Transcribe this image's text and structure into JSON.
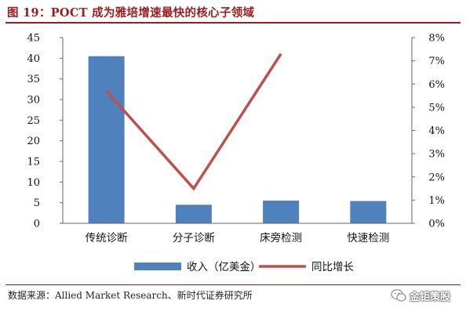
{
  "header": {
    "title": "图 19：POCT 成为雅培增速最快的核心子领域"
  },
  "footer": {
    "source": "数据来源：Allied Market Research、新时代证券研究所",
    "watermark": "金钜策股"
  },
  "colors": {
    "bar": "#4f81bd",
    "line": "#c0504d",
    "title": "#9b1c1c"
  },
  "chart_data": {
    "type": "bar",
    "categories": [
      "传统诊断",
      "分子诊断",
      "床旁检测",
      "快速检测"
    ],
    "series": [
      {
        "name": "收入（亿美金）",
        "type": "bar",
        "axis": "left",
        "values": [
          40.5,
          4.5,
          5.5,
          5.4
        ]
      },
      {
        "name": "同比增长",
        "type": "line",
        "axis": "right",
        "values": [
          5.7,
          1.5,
          7.3,
          null
        ]
      }
    ],
    "y_left": {
      "min": 0,
      "max": 45,
      "ticks": [
        "0",
        "5",
        "10",
        "15",
        "20",
        "25",
        "30",
        "35",
        "40",
        "45"
      ]
    },
    "y_right": {
      "min": 0,
      "max": 8,
      "ticks": [
        "0%",
        "1%",
        "2%",
        "3%",
        "4%",
        "5%",
        "6%",
        "7%",
        "8%"
      ]
    },
    "grid": false,
    "legend_position": "bottom"
  }
}
